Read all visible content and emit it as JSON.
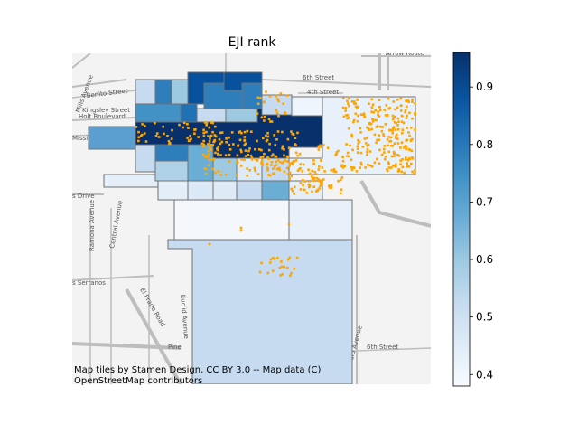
{
  "title": "EJI rank",
  "colorbar": {
    "min": 0.38,
    "max": 0.96,
    "ticks": [
      "0.4",
      "0.5",
      "0.6",
      "0.7",
      "0.8",
      "0.9"
    ],
    "tick_values": [
      0.4,
      0.5,
      0.6,
      0.7,
      0.8,
      0.9
    ],
    "colormap": "Blues",
    "colors": [
      "#f7fbff",
      "#deebf7",
      "#c6dbef",
      "#9ecae1",
      "#6baed6",
      "#4292c6",
      "#2171b5",
      "#08519c",
      "#08306b"
    ]
  },
  "attribution": {
    "line1": "Map tiles by Stamen Design, CC BY 3.0 -- Map data (C)",
    "line2": "OpenStreetMap contributors"
  },
  "map": {
    "point_color": "#ffa500",
    "tract_edge_color": "#707070",
    "basemap_color": "#f3f3f3",
    "street_labels": [
      {
        "id": "6th-street-top",
        "text": "6th Street"
      },
      {
        "id": "4th-street",
        "text": "4th Street"
      },
      {
        "id": "arrow-route",
        "text": "Arrow Route"
      },
      {
        "id": "benito-street",
        "text": "Benito Street"
      },
      {
        "id": "kingsley-street",
        "text": "Kingsley Street"
      },
      {
        "id": "holt-boulevard",
        "text": "Holt Boulevard"
      },
      {
        "id": "mission",
        "text": "Missio"
      },
      {
        "id": "mills-avenue",
        "text": "Mills Avenue"
      },
      {
        "id": "drive",
        "text": "s Drive"
      },
      {
        "id": "ramona-avenue",
        "text": "Ramona Avenue"
      },
      {
        "id": "central-avenue",
        "text": "Central Avenue"
      },
      {
        "id": "euclid-avenue",
        "text": "Euclid Avenue"
      },
      {
        "id": "el-prado-road",
        "text": "El Prado Road"
      },
      {
        "id": "los-serranos",
        "text": "s Serranos"
      },
      {
        "id": "6th-street-bottom",
        "text": "6th Street"
      },
      {
        "id": "archibald-avenue",
        "text": "Archibald Avenue"
      },
      {
        "id": "pine",
        "text": "Pine"
      }
    ]
  }
}
